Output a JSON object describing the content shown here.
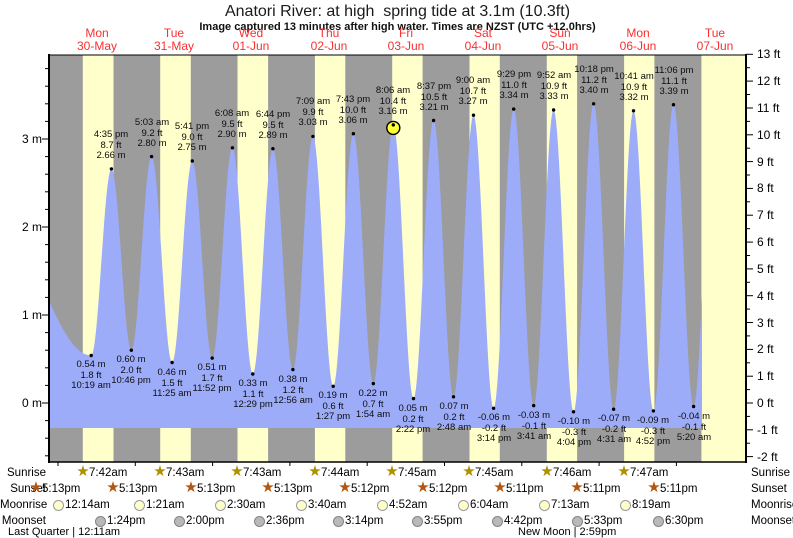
{
  "title": "Anatori River: at high  spring tide at 3.1m (10.3ft)",
  "subtitle": "Image captured 13 minutes after high water. Times are NZST (UTC +12.0hrs)",
  "chart_data": {
    "type": "area",
    "description": "Tide height curve over 9 days; high/low tide extremes with day/night shading",
    "x_axis": {
      "days": [
        {
          "name": "Mon",
          "date": "30-May"
        },
        {
          "name": "Tue",
          "date": "31-May"
        },
        {
          "name": "Wed",
          "date": "01-Jun"
        },
        {
          "name": "Thu",
          "date": "02-Jun"
        },
        {
          "name": "Fri",
          "date": "03-Jun"
        },
        {
          "name": "Sat",
          "date": "04-Jun"
        },
        {
          "name": "Sun",
          "date": "05-Jun"
        },
        {
          "name": "Mon",
          "date": "06-Jun"
        },
        {
          "name": "Tue",
          "date": "07-Jun"
        }
      ]
    },
    "y_axis_left": {
      "unit": "m",
      "labels": [
        3,
        2,
        1,
        0
      ],
      "minor_step": 0.2
    },
    "y_axis_right": {
      "unit": "ft",
      "max": 13,
      "min": -2,
      "minor_step": 0.5
    },
    "tide_events": [
      {
        "day": 0,
        "time": "10:19 am",
        "type": "low",
        "m": "0.54",
        "ft": "1.8"
      },
      {
        "day": 0,
        "time": "4:35 pm",
        "type": "high",
        "m": "2.66",
        "ft": "8.7"
      },
      {
        "day": 0,
        "time": "10:46 pm",
        "type": "low",
        "m": "0.60",
        "ft": "2.0"
      },
      {
        "day": 1,
        "time": "5:03 am",
        "type": "high",
        "m": "2.80",
        "ft": "9.2"
      },
      {
        "day": 1,
        "time": "11:25 am",
        "type": "low",
        "m": "0.46",
        "ft": "1.5"
      },
      {
        "day": 1,
        "time": "5:41 pm",
        "type": "high",
        "m": "2.75",
        "ft": "9.0"
      },
      {
        "day": 1,
        "time": "11:52 pm",
        "type": "low",
        "m": "0.51",
        "ft": "1.7"
      },
      {
        "day": 2,
        "time": "6:08 am",
        "type": "high",
        "m": "2.90",
        "ft": "9.5"
      },
      {
        "day": 2,
        "time": "12:29 pm",
        "type": "low",
        "m": "0.33",
        "ft": "1.1"
      },
      {
        "day": 2,
        "time": "6:44 pm",
        "type": "high",
        "m": "2.89",
        "ft": "9.5"
      },
      {
        "day": 3,
        "time": "12:56 am",
        "type": "low",
        "m": "0.38",
        "ft": "1.2"
      },
      {
        "day": 3,
        "time": "7:09 am",
        "type": "high",
        "m": "3.03",
        "ft": "9.9"
      },
      {
        "day": 3,
        "time": "1:27 pm",
        "type": "low",
        "m": "0.19",
        "ft": "0.6"
      },
      {
        "day": 3,
        "time": "7:43 pm",
        "type": "high",
        "m": "3.06",
        "ft": "10.0"
      },
      {
        "day": 4,
        "time": "1:54 am",
        "type": "low",
        "m": "0.22",
        "ft": "0.7"
      },
      {
        "day": 4,
        "time": "8:06 am",
        "type": "high",
        "m": "3.16",
        "ft": "10.4",
        "current": true
      },
      {
        "day": 4,
        "time": "2:22 pm",
        "type": "low",
        "m": "0.05",
        "ft": "0.2"
      },
      {
        "day": 4,
        "time": "8:37 pm",
        "type": "high",
        "m": "3.21",
        "ft": "10.5"
      },
      {
        "day": 5,
        "time": "2:48 am",
        "type": "low",
        "m": "0.07",
        "ft": "0.2"
      },
      {
        "day": 5,
        "time": "9:00 am",
        "type": "high",
        "m": "3.27",
        "ft": "10.7"
      },
      {
        "day": 5,
        "time": "3:14 pm",
        "type": "low",
        "m": "-0.06",
        "ft": "-0.2"
      },
      {
        "day": 5,
        "time": "9:29 pm",
        "type": "high",
        "m": "3.34",
        "ft": "11.0"
      },
      {
        "day": 6,
        "time": "3:41 am",
        "type": "low",
        "m": "-0.03",
        "ft": "-0.1"
      },
      {
        "day": 6,
        "time": "9:52 am",
        "type": "high",
        "m": "3.33",
        "ft": "10.9"
      },
      {
        "day": 6,
        "time": "4:04 pm",
        "type": "low",
        "m": "-0.10",
        "ft": "-0.3"
      },
      {
        "day": 6,
        "time": "10:18 pm",
        "type": "high",
        "m": "3.40",
        "ft": "11.2"
      },
      {
        "day": 7,
        "time": "4:31 am",
        "type": "low",
        "m": "-0.07",
        "ft": "-0.2"
      },
      {
        "day": 7,
        "time": "10:41 am",
        "type": "high",
        "m": "3.32",
        "ft": "10.9"
      },
      {
        "day": 7,
        "time": "4:52 pm",
        "type": "low",
        "m": "-0.09",
        "ft": "-0.3"
      },
      {
        "day": 7,
        "time": "11:06 pm",
        "type": "high",
        "m": "3.39",
        "ft": "11.1"
      },
      {
        "day": 8,
        "time": "5:20 am",
        "type": "low",
        "m": "-0.04",
        "ft": "-0.1"
      }
    ],
    "rows": {
      "sunrise": {
        "label": "Sunrise",
        "events": [
          {
            "day": 0,
            "time": "7:42am"
          },
          {
            "day": 1,
            "time": "7:43am"
          },
          {
            "day": 2,
            "time": "7:43am"
          },
          {
            "day": 3,
            "time": "7:44am"
          },
          {
            "day": 4,
            "time": "7:45am"
          },
          {
            "day": 5,
            "time": "7:45am"
          },
          {
            "day": 6,
            "time": "7:46am"
          },
          {
            "day": 7,
            "time": "7:47am"
          }
        ]
      },
      "sunset": {
        "label": "Sunset",
        "events": [
          {
            "day": -1,
            "time": "5:13pm"
          },
          {
            "day": 0,
            "time": "5:13pm"
          },
          {
            "day": 1,
            "time": "5:13pm"
          },
          {
            "day": 2,
            "time": "5:13pm"
          },
          {
            "day": 3,
            "time": "5:12pm"
          },
          {
            "day": 4,
            "time": "5:12pm"
          },
          {
            "day": 5,
            "time": "5:11pm"
          },
          {
            "day": 6,
            "time": "5:11pm"
          },
          {
            "day": 7,
            "time": "5:11pm"
          }
        ]
      },
      "moonrise": {
        "label": "Moonrise",
        "events": [
          {
            "day": 0,
            "time": "12:14am"
          },
          {
            "day": 1,
            "time": "1:21am"
          },
          {
            "day": 2,
            "time": "2:30am"
          },
          {
            "day": 3,
            "time": "3:40am"
          },
          {
            "day": 4,
            "time": "4:52am"
          },
          {
            "day": 5,
            "time": "6:04am"
          },
          {
            "day": 6,
            "time": "7:13am"
          },
          {
            "day": 7,
            "time": "8:19am"
          }
        ]
      },
      "moonset": {
        "label": "Moonset",
        "events": [
          {
            "day": 0,
            "time": "1:24pm"
          },
          {
            "day": 1,
            "time": "2:00pm"
          },
          {
            "day": 2,
            "time": "2:36pm"
          },
          {
            "day": 3,
            "time": "3:14pm"
          },
          {
            "day": 4,
            "time": "3:55pm"
          },
          {
            "day": 5,
            "time": "4:42pm"
          },
          {
            "day": 6,
            "time": "5:33pm"
          },
          {
            "day": 7,
            "time": "6:30pm"
          }
        ]
      }
    },
    "moon_phases": {
      "last_quarter": "Last Quarter | 12:11am",
      "new_moon": "New Moon | 2:59pm"
    }
  },
  "colors": {
    "night_band": "#9c9c9c",
    "day_band": "#ffffcc",
    "tide_fill": "#9dacf9",
    "current_dot": "#ffff33",
    "day_label_red": "#f93030",
    "sunrise_star": "#ad9000",
    "sunset_star": "#b5560e",
    "moonrise_fill": "#ffffcc",
    "moonrise_stroke": "#999999",
    "moonset_fill": "#b9b9b9",
    "moonset_stroke": "#848484"
  }
}
